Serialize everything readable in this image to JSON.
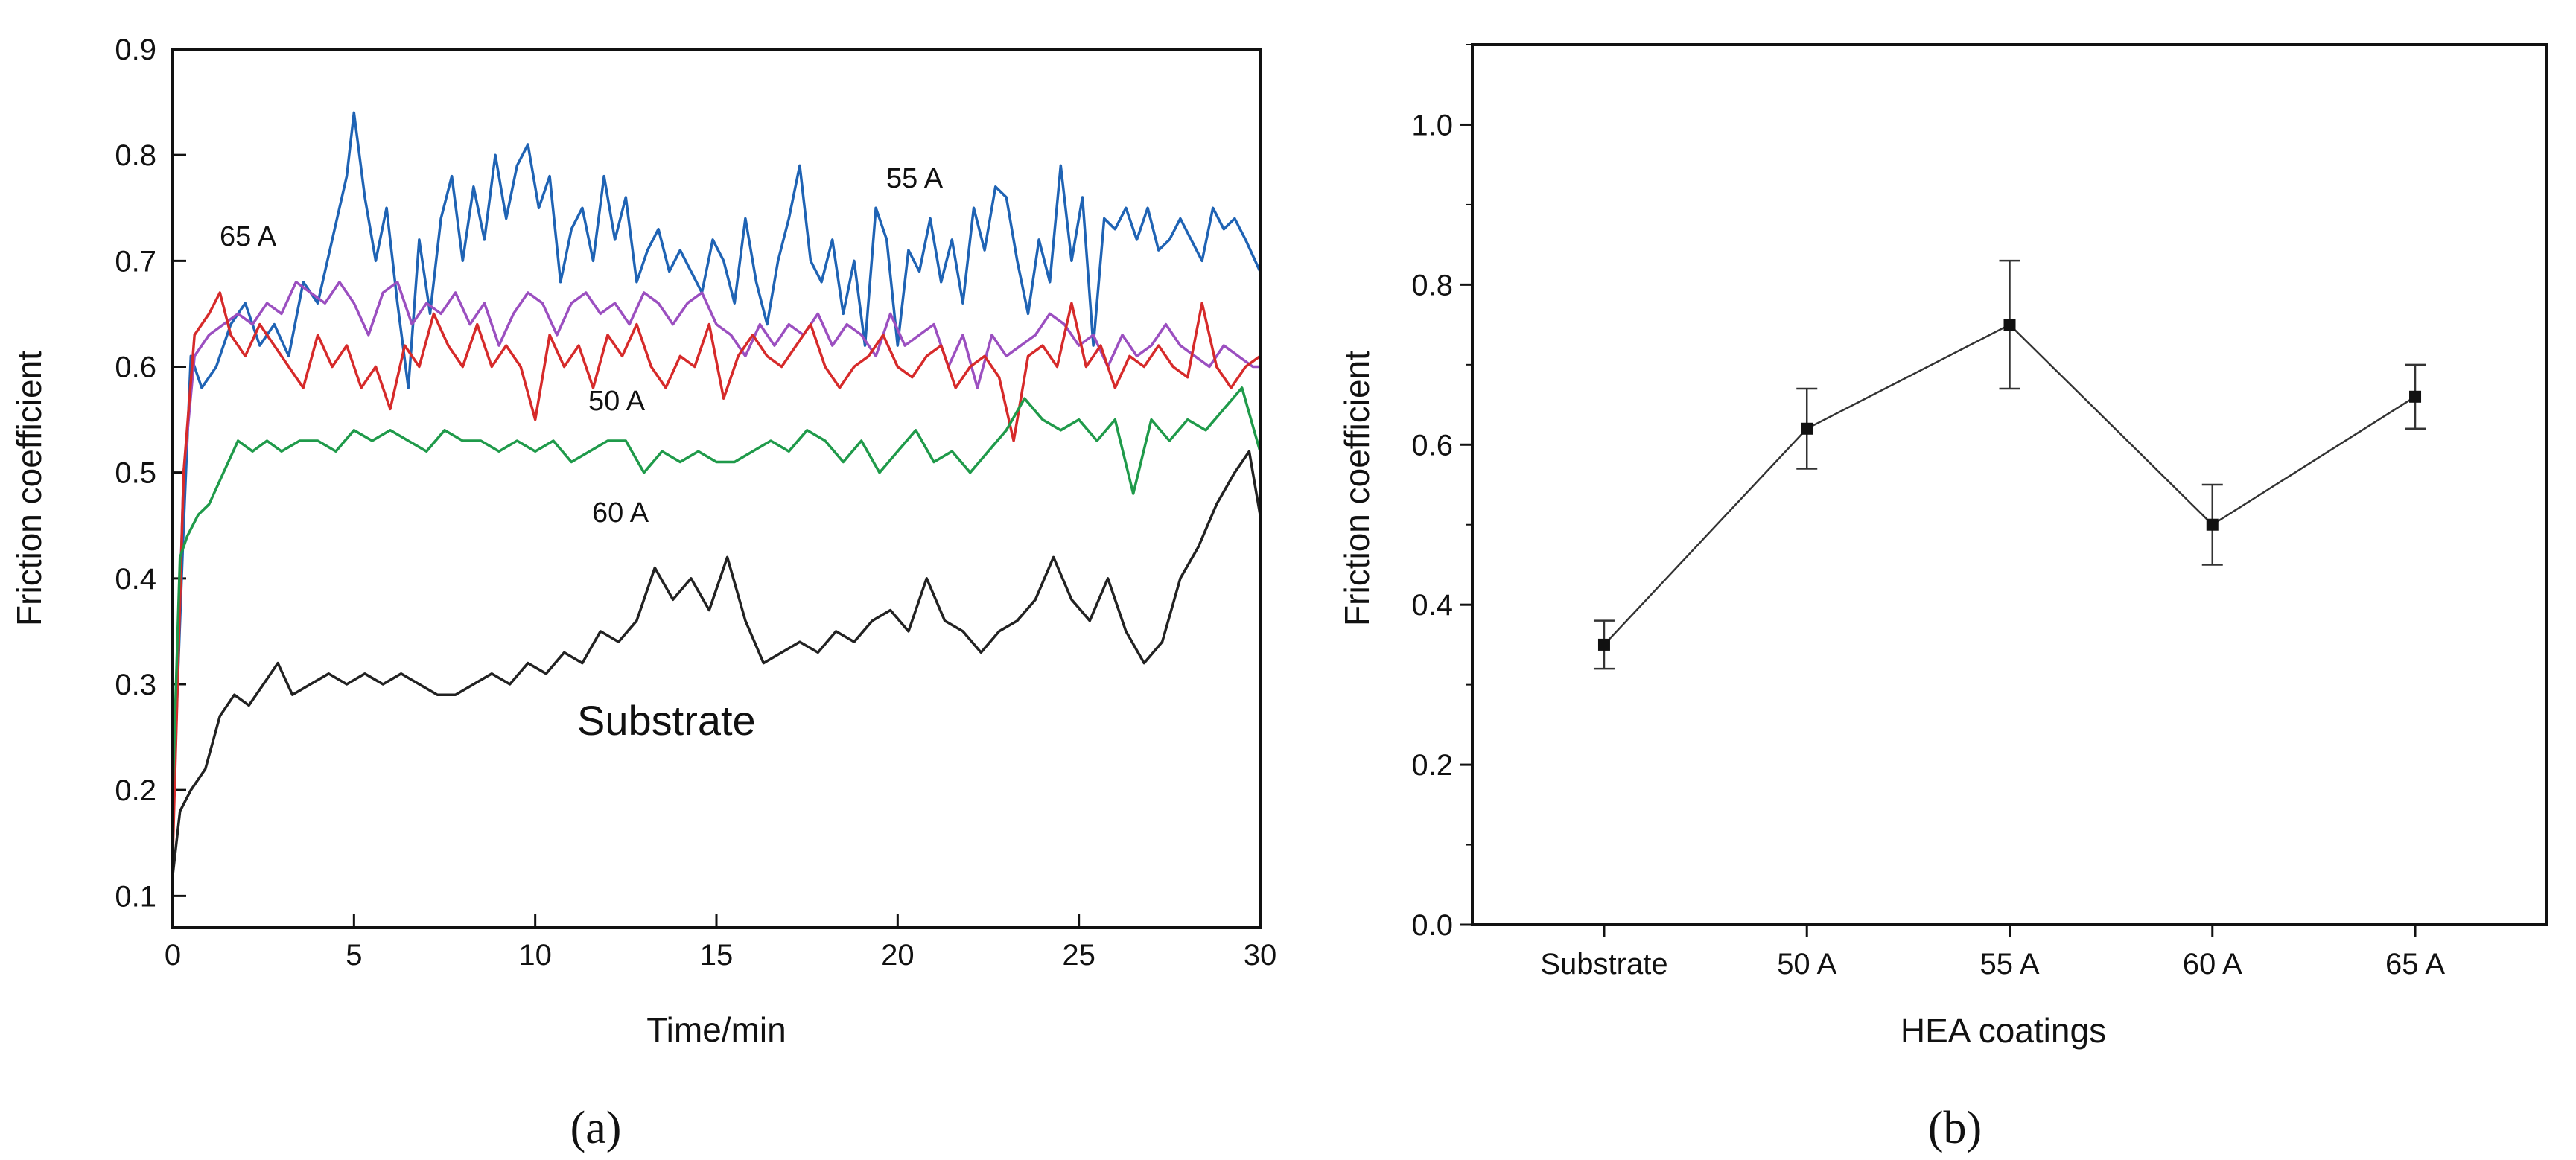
{
  "chart_data": [
    {
      "panel": "(a)",
      "type": "line",
      "xlabel": "Time/min",
      "ylabel": "Friction  coefficient",
      "xlim": [
        0,
        30
      ],
      "ylim": [
        0.07,
        0.9
      ],
      "xticks": [
        0,
        5,
        10,
        15,
        20,
        25,
        30
      ],
      "yticks": [
        0.1,
        0.2,
        0.3,
        0.4,
        0.5,
        0.6,
        0.7,
        0.8,
        0.9
      ],
      "annotations": [
        "55 A",
        "65 A",
        "50 A",
        "60 A",
        "Substrate"
      ],
      "series": [
        {
          "name": "55 A",
          "color": "#1f63b4",
          "x": [
            0,
            0.3,
            0.5,
            0.8,
            1.2,
            1.6,
            2.0,
            2.4,
            2.8,
            3.2,
            3.6,
            4.0,
            4.4,
            4.8,
            5.0,
            5.3,
            5.6,
            5.9,
            6.2,
            6.5,
            6.8,
            7.1,
            7.4,
            7.7,
            8.0,
            8.3,
            8.6,
            8.9,
            9.2,
            9.5,
            9.8,
            10.1,
            10.4,
            10.7,
            11.0,
            11.3,
            11.6,
            11.9,
            12.2,
            12.5,
            12.8,
            13.1,
            13.4,
            13.7,
            14.0,
            14.3,
            14.6,
            14.9,
            15.2,
            15.5,
            15.8,
            16.1,
            16.4,
            16.7,
            17.0,
            17.3,
            17.6,
            17.9,
            18.2,
            18.5,
            18.8,
            19.1,
            19.4,
            19.7,
            20.0,
            20.3,
            20.6,
            20.9,
            21.2,
            21.5,
            21.8,
            22.1,
            22.4,
            22.7,
            23.0,
            23.3,
            23.6,
            23.9,
            24.2,
            24.5,
            24.8,
            25.1,
            25.4,
            25.7,
            26.0,
            26.3,
            26.6,
            26.9,
            27.2,
            27.5,
            27.8,
            28.1,
            28.4,
            28.7,
            29.0,
            29.3,
            29.6,
            30.0
          ],
          "y": [
            0.18,
            0.45,
            0.61,
            0.58,
            0.6,
            0.64,
            0.66,
            0.62,
            0.64,
            0.61,
            0.68,
            0.66,
            0.72,
            0.78,
            0.84,
            0.76,
            0.7,
            0.75,
            0.66,
            0.58,
            0.72,
            0.65,
            0.74,
            0.78,
            0.7,
            0.77,
            0.72,
            0.8,
            0.74,
            0.79,
            0.81,
            0.75,
            0.78,
            0.68,
            0.73,
            0.75,
            0.7,
            0.78,
            0.72,
            0.76,
            0.68,
            0.71,
            0.73,
            0.69,
            0.71,
            0.69,
            0.67,
            0.72,
            0.7,
            0.66,
            0.74,
            0.68,
            0.64,
            0.7,
            0.74,
            0.79,
            0.7,
            0.68,
            0.72,
            0.65,
            0.7,
            0.62,
            0.75,
            0.72,
            0.62,
            0.71,
            0.69,
            0.74,
            0.68,
            0.72,
            0.66,
            0.75,
            0.71,
            0.77,
            0.76,
            0.7,
            0.65,
            0.72,
            0.68,
            0.79,
            0.7,
            0.76,
            0.62,
            0.74,
            0.73,
            0.75,
            0.72,
            0.75,
            0.71,
            0.72,
            0.74,
            0.72,
            0.7,
            0.75,
            0.73,
            0.74,
            0.72,
            0.69
          ]
        },
        {
          "name": "65 A",
          "color": "#9b4fc0",
          "x": [
            0,
            0.3,
            0.6,
            1.0,
            1.4,
            1.8,
            2.2,
            2.6,
            3.0,
            3.4,
            3.8,
            4.2,
            4.6,
            5.0,
            5.4,
            5.8,
            6.2,
            6.6,
            7.0,
            7.4,
            7.8,
            8.2,
            8.6,
            9.0,
            9.4,
            9.8,
            10.2,
            10.6,
            11.0,
            11.4,
            11.8,
            12.2,
            12.6,
            13.0,
            13.4,
            13.8,
            14.2,
            14.6,
            15.0,
            15.4,
            15.8,
            16.2,
            16.6,
            17.0,
            17.4,
            17.8,
            18.2,
            18.6,
            19.0,
            19.4,
            19.8,
            20.2,
            20.6,
            21.0,
            21.4,
            21.8,
            22.2,
            22.6,
            23.0,
            23.4,
            23.8,
            24.2,
            24.6,
            25.0,
            25.4,
            25.8,
            26.2,
            26.6,
            27.0,
            27.4,
            27.8,
            28.2,
            28.6,
            29.0,
            29.4,
            29.8,
            30.0
          ],
          "y": [
            0.15,
            0.5,
            0.61,
            0.63,
            0.64,
            0.65,
            0.64,
            0.66,
            0.65,
            0.68,
            0.67,
            0.66,
            0.68,
            0.66,
            0.63,
            0.67,
            0.68,
            0.64,
            0.66,
            0.65,
            0.67,
            0.64,
            0.66,
            0.62,
            0.65,
            0.67,
            0.66,
            0.63,
            0.66,
            0.67,
            0.65,
            0.66,
            0.64,
            0.67,
            0.66,
            0.64,
            0.66,
            0.67,
            0.64,
            0.63,
            0.61,
            0.64,
            0.62,
            0.64,
            0.63,
            0.65,
            0.62,
            0.64,
            0.63,
            0.61,
            0.65,
            0.62,
            0.63,
            0.64,
            0.6,
            0.63,
            0.58,
            0.63,
            0.61,
            0.62,
            0.63,
            0.65,
            0.64,
            0.62,
            0.63,
            0.6,
            0.63,
            0.61,
            0.62,
            0.64,
            0.62,
            0.61,
            0.6,
            0.62,
            0.61,
            0.6,
            0.6
          ]
        },
        {
          "name": "50 A",
          "color": "#d62a2a",
          "x": [
            0,
            0.3,
            0.6,
            1.0,
            1.3,
            1.6,
            2.0,
            2.4,
            2.8,
            3.2,
            3.6,
            4.0,
            4.4,
            4.8,
            5.2,
            5.6,
            6.0,
            6.4,
            6.8,
            7.2,
            7.6,
            8.0,
            8.4,
            8.8,
            9.2,
            9.6,
            10.0,
            10.4,
            10.8,
            11.2,
            11.6,
            12.0,
            12.4,
            12.8,
            13.2,
            13.6,
            14.0,
            14.4,
            14.8,
            15.2,
            15.6,
            16.0,
            16.4,
            16.8,
            17.2,
            17.6,
            18.0,
            18.4,
            18.8,
            19.2,
            19.6,
            20.0,
            20.4,
            20.8,
            21.2,
            21.6,
            22.0,
            22.4,
            22.8,
            23.2,
            23.6,
            24.0,
            24.4,
            24.8,
            25.2,
            25.6,
            26.0,
            26.4,
            26.8,
            27.2,
            27.6,
            28.0,
            28.4,
            28.8,
            29.2,
            29.6,
            30.0
          ],
          "y": [
            0.14,
            0.5,
            0.63,
            0.65,
            0.67,
            0.63,
            0.61,
            0.64,
            0.62,
            0.6,
            0.58,
            0.63,
            0.6,
            0.62,
            0.58,
            0.6,
            0.56,
            0.62,
            0.6,
            0.65,
            0.62,
            0.6,
            0.64,
            0.6,
            0.62,
            0.6,
            0.55,
            0.63,
            0.6,
            0.62,
            0.58,
            0.63,
            0.61,
            0.64,
            0.6,
            0.58,
            0.61,
            0.6,
            0.64,
            0.57,
            0.61,
            0.63,
            0.61,
            0.6,
            0.62,
            0.64,
            0.6,
            0.58,
            0.6,
            0.61,
            0.63,
            0.6,
            0.59,
            0.61,
            0.62,
            0.58,
            0.6,
            0.61,
            0.59,
            0.53,
            0.61,
            0.62,
            0.6,
            0.66,
            0.6,
            0.62,
            0.58,
            0.61,
            0.6,
            0.62,
            0.6,
            0.59,
            0.66,
            0.6,
            0.58,
            0.6,
            0.61
          ]
        },
        {
          "name": "60 A",
          "color": "#1f9a4a",
          "x": [
            0,
            0.2,
            0.4,
            0.7,
            1.0,
            1.4,
            1.8,
            2.2,
            2.6,
            3.0,
            3.5,
            4.0,
            4.5,
            5.0,
            5.5,
            6.0,
            6.5,
            7.0,
            7.5,
            8.0,
            8.5,
            9.0,
            9.5,
            10.0,
            10.5,
            11.0,
            11.5,
            12.0,
            12.5,
            13.0,
            13.5,
            14.0,
            14.5,
            15.0,
            15.5,
            16.0,
            16.5,
            17.0,
            17.5,
            18.0,
            18.5,
            19.0,
            19.5,
            20.0,
            20.5,
            21.0,
            21.5,
            22.0,
            22.5,
            23.0,
            23.5,
            24.0,
            24.5,
            25.0,
            25.5,
            26.0,
            26.5,
            27.0,
            27.5,
            28.0,
            28.5,
            29.0,
            29.5,
            30.0
          ],
          "y": [
            0.2,
            0.42,
            0.44,
            0.46,
            0.47,
            0.5,
            0.53,
            0.52,
            0.53,
            0.52,
            0.53,
            0.53,
            0.52,
            0.54,
            0.53,
            0.54,
            0.53,
            0.52,
            0.54,
            0.53,
            0.53,
            0.52,
            0.53,
            0.52,
            0.53,
            0.51,
            0.52,
            0.53,
            0.53,
            0.5,
            0.52,
            0.51,
            0.52,
            0.51,
            0.51,
            0.52,
            0.53,
            0.52,
            0.54,
            0.53,
            0.51,
            0.53,
            0.5,
            0.52,
            0.54,
            0.51,
            0.52,
            0.5,
            0.52,
            0.54,
            0.57,
            0.55,
            0.54,
            0.55,
            0.53,
            0.55,
            0.48,
            0.55,
            0.53,
            0.55,
            0.54,
            0.56,
            0.58,
            0.52
          ]
        },
        {
          "name": "Substrate",
          "color": "#222222",
          "x": [
            0,
            0.2,
            0.5,
            0.9,
            1.3,
            1.7,
            2.1,
            2.5,
            2.9,
            3.3,
            3.8,
            4.3,
            4.8,
            5.3,
            5.8,
            6.3,
            6.8,
            7.3,
            7.8,
            8.3,
            8.8,
            9.3,
            9.8,
            10.3,
            10.8,
            11.3,
            11.8,
            12.3,
            12.8,
            13.3,
            13.8,
            14.3,
            14.8,
            15.3,
            15.8,
            16.3,
            16.8,
            17.3,
            17.8,
            18.3,
            18.8,
            19.3,
            19.8,
            20.3,
            20.8,
            21.3,
            21.8,
            22.3,
            22.8,
            23.3,
            23.8,
            24.3,
            24.8,
            25.3,
            25.8,
            26.3,
            26.8,
            27.3,
            27.8,
            28.3,
            28.8,
            29.3,
            29.7,
            30.0
          ],
          "y": [
            0.12,
            0.18,
            0.2,
            0.22,
            0.27,
            0.29,
            0.28,
            0.3,
            0.32,
            0.29,
            0.3,
            0.31,
            0.3,
            0.31,
            0.3,
            0.31,
            0.3,
            0.29,
            0.29,
            0.3,
            0.31,
            0.3,
            0.32,
            0.31,
            0.33,
            0.32,
            0.35,
            0.34,
            0.36,
            0.41,
            0.38,
            0.4,
            0.37,
            0.42,
            0.36,
            0.32,
            0.33,
            0.34,
            0.33,
            0.35,
            0.34,
            0.36,
            0.37,
            0.35,
            0.4,
            0.36,
            0.35,
            0.33,
            0.35,
            0.36,
            0.38,
            0.42,
            0.38,
            0.36,
            0.4,
            0.35,
            0.32,
            0.34,
            0.4,
            0.43,
            0.47,
            0.5,
            0.52,
            0.46
          ]
        }
      ]
    },
    {
      "panel": "(b)",
      "type": "scatter",
      "xlabel": "HEA coatings",
      "ylabel": "Friction coefficient",
      "ylim": [
        0,
        1.1
      ],
      "yticks": [
        0.0,
        0.2,
        0.4,
        0.6,
        0.8,
        1.0
      ],
      "categories": [
        "Substrate",
        "50 A",
        "55 A",
        "60 A",
        "65 A"
      ],
      "values": [
        0.35,
        0.62,
        0.75,
        0.5,
        0.66
      ],
      "errors": [
        0.03,
        0.05,
        0.08,
        0.05,
        0.04
      ],
      "line": true,
      "marker": "square"
    }
  ],
  "panel_labels": {
    "a": "(a)",
    "b": "(b)"
  }
}
